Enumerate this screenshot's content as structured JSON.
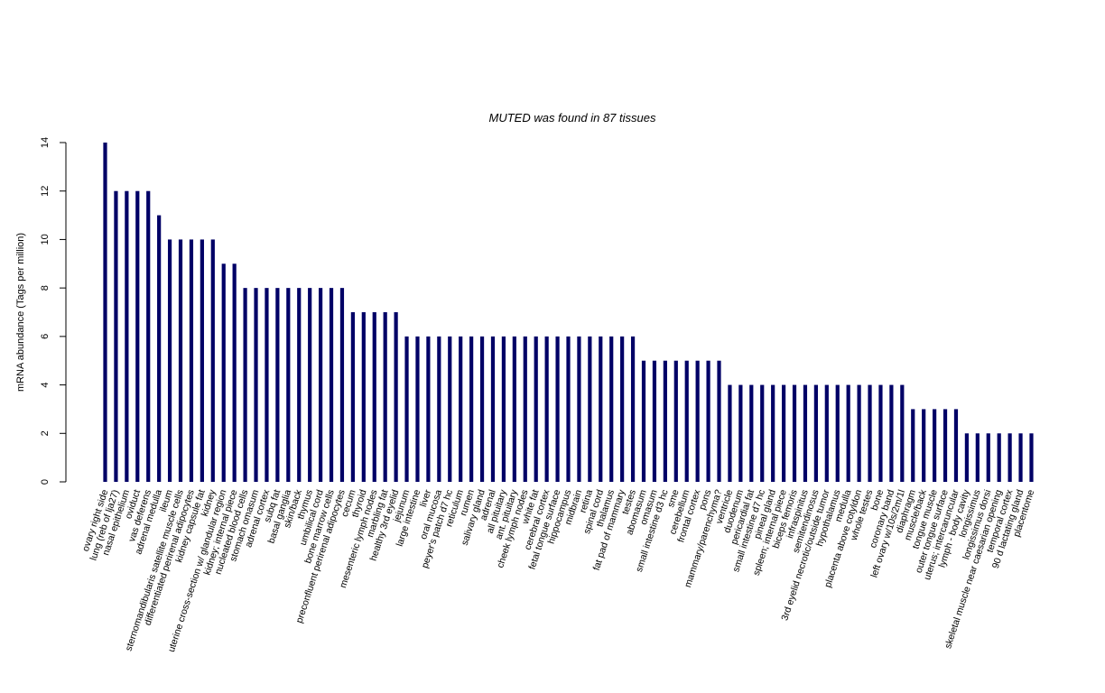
{
  "chart_data": {
    "type": "bar",
    "title": "MUTED  was found in  87  tissues",
    "xlabel": "",
    "ylabel": "mRNA abundance (Tags per million)",
    "ylim": [
      0,
      14
    ],
    "yticks": [
      0,
      2,
      4,
      6,
      8,
      10,
      12,
      14
    ],
    "grid": false,
    "legend": "none",
    "bar_color": "#000066",
    "categories": [
      "ovary right side",
      "lung (reb of lja27)",
      "nasal epithelium",
      "oviduct",
      "vas deferens",
      "adrenal medulla",
      "ileum",
      "sternomandibularis satellite muscle cells",
      "differentiated perirenal adipocytes",
      "kidney capsule fat",
      "kidney",
      "uterine cross-section w/ glandular region",
      "kidney; internal piece",
      "nucleated blood cells",
      "stomach omasum",
      "adrenal cortex",
      "subq fat",
      "basal ganglia",
      "skin/back",
      "thymus",
      "umbilical cord",
      "bone marrow cells",
      "preconfluent perirenal adipocytes",
      "cecum",
      "thyroid",
      "mesenteric lymph nodes",
      "marbling fat",
      "healthy 3rd eyelid",
      "jejunum",
      "large intestine",
      "liver",
      "oral mucosa",
      "peyer's patch d7 hc",
      "reticulum",
      "rumen",
      "salivary gland",
      "adrenal",
      "all pituitary",
      "ant. pituitary",
      "cheek lymph nodes",
      "white fat",
      "cerebral cortex",
      "fetal tongue surface",
      "hippocampus",
      "midbrain",
      "retina",
      "spinal cord",
      "thalamus",
      "fat pad of mammary",
      "testes",
      "abomasum",
      "omasum",
      "small intestine d3 hc",
      "sme",
      "cerebellum",
      "frontal cortex",
      "pons",
      "mammary/parenchyma?",
      "ventricle",
      "duodenum",
      "pericardial fat",
      "small intestine d7 hc",
      "pineal gland",
      "spleen; internal piece",
      "biceps femoris",
      "infraspinitus",
      "semitendinosus",
      "3rd eyelid necrotic/outside tumor",
      "hypothalamus",
      "medulla",
      "placenta above cotyldon",
      "whole testes",
      "bone",
      "coronary band",
      "left ovary w/10s/2m/1l",
      "diaphragm",
      "muscle/back",
      "tongue muscle",
      "outer tongue surface",
      "uterus; intercaruncular",
      "lymph - body cavity",
      "longissimus",
      "longissimus dorsi",
      "skeletal muscle near caesarian opening",
      "temporal cortex",
      "90 d lactating gland",
      "placentome"
    ],
    "values": [
      14,
      12,
      12,
      12,
      12,
      11,
      10,
      10,
      10,
      10,
      10,
      9,
      9,
      8,
      8,
      8,
      8,
      8,
      8,
      8,
      8,
      8,
      8,
      7,
      7,
      7,
      7,
      7,
      6,
      6,
      6,
      6,
      6,
      6,
      6,
      6,
      6,
      6,
      6,
      6,
      6,
      6,
      6,
      6,
      6,
      6,
      6,
      6,
      6,
      6,
      5,
      5,
      5,
      5,
      5,
      5,
      5,
      5,
      4,
      4,
      4,
      4,
      4,
      4,
      4,
      4,
      4,
      4,
      4,
      4,
      4,
      4,
      4,
      4,
      4,
      3,
      3,
      3,
      3,
      3,
      2,
      2,
      2,
      2,
      2,
      2,
      2
    ]
  }
}
